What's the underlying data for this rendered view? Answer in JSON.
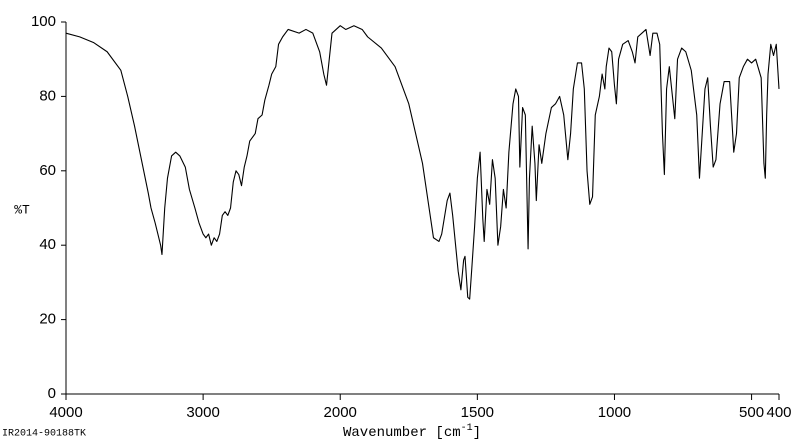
{
  "chart_data": {
    "type": "line",
    "xlabel": {
      "text": "Wavenumber [cm",
      "superscript": "-1",
      "close": "]"
    },
    "ylabel": "%T",
    "footnote": "IR2014-90188TK",
    "xlim": [
      4000,
      400
    ],
    "x_scale_break": 2000,
    "x_scale_factor_below_break": 2,
    "xticks": [
      4000,
      3000,
      2000,
      1500,
      1000,
      500,
      400
    ],
    "ylim": [
      0,
      100
    ],
    "yticks": [
      0,
      20,
      40,
      60,
      80,
      100
    ],
    "color": "#000000",
    "x": [
      4000,
      3900,
      3800,
      3700,
      3600,
      3550,
      3500,
      3450,
      3400,
      3380,
      3350,
      3330,
      3310,
      3300,
      3280,
      3260,
      3230,
      3200,
      3170,
      3130,
      3100,
      3060,
      3030,
      3000,
      2980,
      2960,
      2940,
      2920,
      2900,
      2880,
      2860,
      2840,
      2820,
      2800,
      2780,
      2760,
      2740,
      2720,
      2700,
      2680,
      2660,
      2640,
      2620,
      2600,
      2570,
      2550,
      2520,
      2500,
      2470,
      2450,
      2420,
      2380,
      2300,
      2250,
      2200,
      2150,
      2120,
      2100,
      2080,
      2060,
      2030,
      2000,
      1980,
      1950,
      1920,
      1900,
      1850,
      1800,
      1750,
      1700,
      1680,
      1660,
      1640,
      1630,
      1610,
      1600,
      1590,
      1570,
      1560,
      1550,
      1545,
      1535,
      1528,
      1520,
      1510,
      1500,
      1490,
      1480,
      1475,
      1465,
      1455,
      1445,
      1435,
      1425,
      1415,
      1405,
      1395,
      1385,
      1370,
      1360,
      1350,
      1345,
      1335,
      1325,
      1315,
      1310,
      1300,
      1290,
      1285,
      1275,
      1265,
      1250,
      1230,
      1215,
      1200,
      1185,
      1170,
      1160,
      1150,
      1135,
      1120,
      1110,
      1100,
      1090,
      1080,
      1070,
      1055,
      1045,
      1035,
      1030,
      1020,
      1010,
      1000,
      993,
      985,
      970,
      950,
      935,
      925,
      915,
      900,
      885,
      870,
      860,
      845,
      835,
      825,
      818,
      810,
      800,
      790,
      780,
      770,
      755,
      740,
      720,
      700,
      690,
      680,
      670,
      660,
      650,
      640,
      630,
      615,
      600,
      580,
      565,
      555,
      545,
      530,
      515,
      500,
      485,
      465,
      455,
      450,
      445,
      440,
      430,
      420,
      410,
      405,
      400
    ],
    "values": [
      97,
      96,
      94.5,
      92,
      87,
      80,
      72,
      63,
      54,
      50,
      46,
      43,
      40,
      37.5,
      50,
      58,
      64,
      65,
      64,
      61,
      55,
      50,
      46,
      43,
      42,
      43,
      40,
      42,
      41,
      43,
      48,
      49,
      48,
      50,
      57,
      60,
      59,
      56,
      61,
      64,
      68,
      69,
      70,
      74,
      75,
      79,
      83,
      86,
      88,
      94,
      96,
      98,
      97,
      98,
      97,
      92,
      86,
      83,
      90,
      97,
      98,
      99,
      98,
      99,
      98,
      96,
      93,
      88,
      78,
      62,
      52,
      42,
      41,
      43,
      52,
      54,
      48,
      33,
      28,
      36,
      37,
      26,
      25.5,
      34,
      45,
      58,
      65,
      47,
      41,
      55,
      51,
      63,
      58,
      40,
      45,
      55,
      50,
      65,
      78,
      82,
      80,
      61,
      77,
      75,
      39,
      58,
      72,
      62,
      52,
      67,
      62,
      70,
      77,
      78,
      80,
      75,
      63,
      70,
      82,
      89,
      89,
      82,
      60,
      51,
      53,
      75,
      80,
      86,
      82,
      88,
      93,
      92,
      83,
      78,
      90,
      94,
      95,
      92,
      89,
      96,
      97,
      98,
      91,
      97,
      97,
      94,
      70,
      59,
      82,
      88,
      81,
      74,
      90,
      93,
      92,
      87,
      75,
      58,
      70,
      82,
      85,
      72,
      61,
      63,
      78,
      84,
      84,
      65,
      70,
      85,
      88,
      90,
      89,
      90,
      85,
      62,
      58,
      75,
      86,
      94,
      91,
      94,
      88,
      82
    ]
  }
}
